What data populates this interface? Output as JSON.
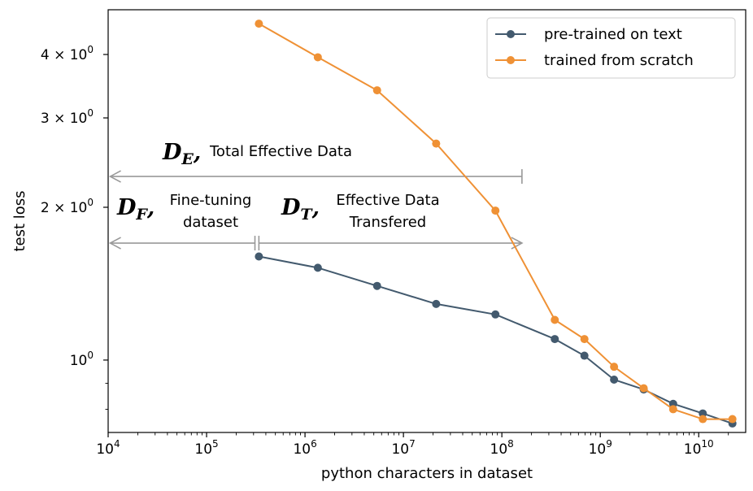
{
  "chart_data": {
    "type": "line",
    "xlabel": "python characters in dataset",
    "ylabel": "test loss",
    "xscale": "log",
    "yscale": "log",
    "xlim": [
      10000,
      30000000000
    ],
    "ylim": [
      0.72,
      4.9
    ],
    "x_ticks": [
      {
        "value": 10000,
        "base": "10",
        "exp": "4"
      },
      {
        "value": 100000,
        "base": "10",
        "exp": "5"
      },
      {
        "value": 1000000,
        "base": "10",
        "exp": "6"
      },
      {
        "value": 10000000,
        "base": "10",
        "exp": "7"
      },
      {
        "value": 100000000,
        "base": "10",
        "exp": "8"
      },
      {
        "value": 1000000000,
        "base": "10",
        "exp": "9"
      },
      {
        "value": 10000000000,
        "base": "10",
        "exp": "10"
      }
    ],
    "y_ticks": [
      {
        "value": 1,
        "label": "10",
        "exp": "0"
      },
      {
        "value": 2,
        "label": "2 × 10",
        "exp": "0"
      },
      {
        "value": 3,
        "label": "3 × 10",
        "exp": "0"
      },
      {
        "value": 4,
        "label": "4 × 10",
        "exp": "0"
      }
    ],
    "y_minor_ticks": [
      0.8,
      0.9
    ],
    "grid": false,
    "legend_position": "top-right",
    "series": [
      {
        "name": "pre-trained on text",
        "color": "#435a6e",
        "points": [
          {
            "x": 340000,
            "y": 1.6
          },
          {
            "x": 1350000,
            "y": 1.52
          },
          {
            "x": 5400000,
            "y": 1.4
          },
          {
            "x": 21500000,
            "y": 1.29
          },
          {
            "x": 86000000,
            "y": 1.23
          },
          {
            "x": 345000000,
            "y": 1.1
          },
          {
            "x": 690000000,
            "y": 1.02
          },
          {
            "x": 1380000000,
            "y": 0.915
          },
          {
            "x": 2760000000,
            "y": 0.875
          },
          {
            "x": 5500000000,
            "y": 0.82
          },
          {
            "x": 11000000000,
            "y": 0.785
          },
          {
            "x": 22000000000,
            "y": 0.75
          }
        ]
      },
      {
        "name": "trained from scratch",
        "color": "#ef9135",
        "points": [
          {
            "x": 340000,
            "y": 4.6
          },
          {
            "x": 1350000,
            "y": 3.95
          },
          {
            "x": 5400000,
            "y": 3.4
          },
          {
            "x": 21500000,
            "y": 2.67
          },
          {
            "x": 86000000,
            "y": 1.97
          },
          {
            "x": 345000000,
            "y": 1.2
          },
          {
            "x": 690000000,
            "y": 1.1
          },
          {
            "x": 1380000000,
            "y": 0.97
          },
          {
            "x": 2760000000,
            "y": 0.88
          },
          {
            "x": 5500000000,
            "y": 0.8
          },
          {
            "x": 11000000000,
            "y": 0.765
          },
          {
            "x": 22000000000,
            "y": 0.765
          }
        ]
      }
    ],
    "annotations": [
      {
        "symbol": "D",
        "sub": "E",
        "text_lines": [
          "Total Effective Data"
        ],
        "y": 2.3,
        "x_from": 160000000,
        "x_to": 10500,
        "color": "#999999"
      },
      {
        "symbol": "D",
        "sub": "F",
        "text_lines": [
          "Fine-tuning",
          "dataset"
        ],
        "y": 1.7,
        "x_from": 310000,
        "x_to": 10500,
        "color": "#999999"
      },
      {
        "symbol": "D",
        "sub": "T",
        "text_lines": [
          "Effective Data",
          "Transfered"
        ],
        "y": 1.7,
        "x_from": 340000,
        "x_to": 160000000,
        "color": "#999999"
      }
    ]
  }
}
